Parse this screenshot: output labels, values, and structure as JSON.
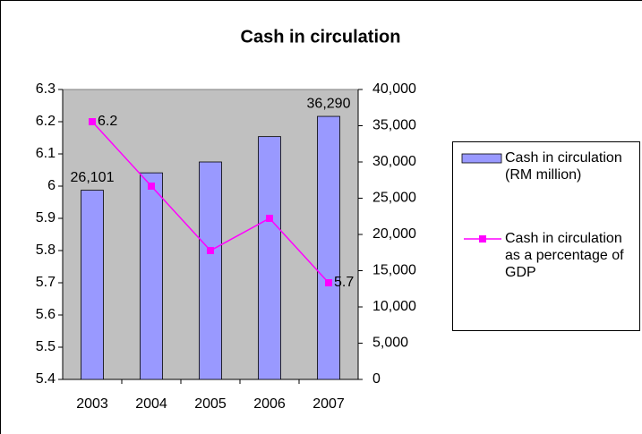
{
  "chart_data": {
    "type": "bar-line",
    "title": "Cash in circulation",
    "categories": [
      "2003",
      "2004",
      "2005",
      "2006",
      "2007"
    ],
    "series": [
      {
        "name": "Cash in circulation (RM million)",
        "type": "bar",
        "axis": "y2",
        "color": "#9999ff",
        "values": [
          26101,
          28500,
          30000,
          33500,
          36290
        ],
        "value_labels": [
          "26,101",
          null,
          null,
          null,
          "36,290"
        ]
      },
      {
        "name": "Cash in circulation as a percentage of GDP",
        "type": "line",
        "axis": "y",
        "color": "#ff00ff",
        "values": [
          6.2,
          6.0,
          5.8,
          5.9,
          5.7
        ],
        "value_labels": [
          "6.2",
          null,
          null,
          null,
          "5.7"
        ]
      }
    ],
    "ylim": [
      5.4,
      6.3
    ],
    "yticks": [
      5.4,
      5.5,
      5.6,
      5.7,
      5.8,
      5.9,
      6,
      6.1,
      6.2,
      6.3
    ],
    "y2lim": [
      0,
      40000
    ],
    "y2ticks": [
      0,
      {
        "value": 5000,
        "label": "5,000"
      },
      {
        "value": 10000,
        "label": "10,000"
      },
      {
        "value": 15000,
        "label": "15,000"
      },
      {
        "value": 20000,
        "label": "20,000"
      },
      {
        "value": 25000,
        "label": "25,000"
      },
      {
        "value": 30000,
        "label": "30,000"
      },
      {
        "value": 35000,
        "label": "35,000"
      },
      {
        "value": 40000,
        "label": "40,000"
      }
    ],
    "plot_background": "#c0c0c0"
  }
}
